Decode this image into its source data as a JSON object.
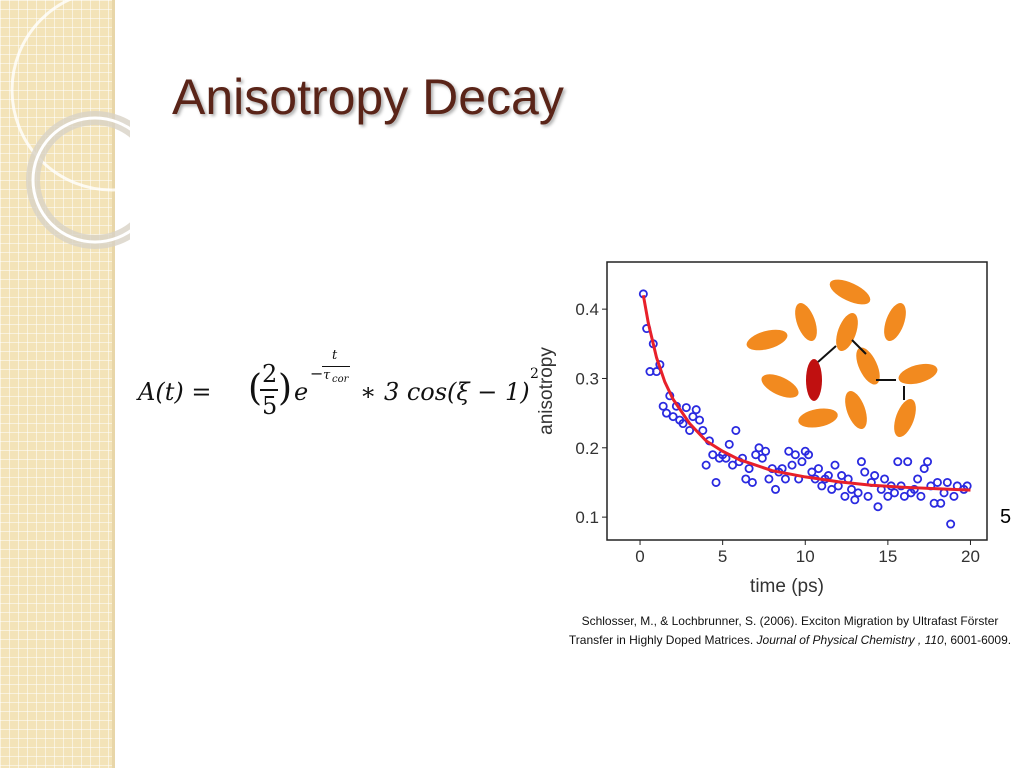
{
  "title": "Anisotropy Decay",
  "equation": {
    "lhs": "A(t) =",
    "num": "2",
    "den": "5",
    "base": "e",
    "exp_sign": "−",
    "exp_num": "t",
    "exp_den": "τ",
    "exp_sub": "cor",
    "rest": "∗ 3 cos(ξ − 1)",
    "power": "2"
  },
  "chart_data": {
    "type": "scatter",
    "x_label": "time (ps)",
    "y_label": "anisotropy",
    "xlim": [
      -2,
      21
    ],
    "ylim": [
      0.067,
      0.468
    ],
    "xticks": [
      0,
      5,
      10,
      15,
      20
    ],
    "yticks": [
      0.1,
      0.2,
      0.3,
      0.4
    ],
    "series": [
      {
        "kind": "points",
        "color": "#2a2ae0",
        "x": [
          0.2,
          0.4,
          0.6,
          0.8,
          1.0,
          1.2,
          1.4,
          1.6,
          1.8,
          2.0,
          2.2,
          2.4,
          2.6,
          2.8,
          3.0,
          3.2,
          3.4,
          3.6,
          3.8,
          4.0,
          4.2,
          4.4,
          4.6,
          4.8,
          5.0,
          5.2,
          5.4,
          5.6,
          5.8,
          6.0,
          6.2,
          6.4,
          6.6,
          6.8,
          7.0,
          7.2,
          7.4,
          7.6,
          7.8,
          8.0,
          8.2,
          8.4,
          8.6,
          8.8,
          9.0,
          9.2,
          9.4,
          9.6,
          9.8,
          10.0,
          10.2,
          10.4,
          10.6,
          10.8,
          11.0,
          11.2,
          11.4,
          11.6,
          11.8,
          12.0,
          12.2,
          12.4,
          12.6,
          12.8,
          13.0,
          13.2,
          13.4,
          13.6,
          13.8,
          14.0,
          14.2,
          14.4,
          14.6,
          14.8,
          15.0,
          15.2,
          15.4,
          15.6,
          15.8,
          16.0,
          16.2,
          16.4,
          16.6,
          16.8,
          17.0,
          17.2,
          17.4,
          17.6,
          17.8,
          18.0,
          18.2,
          18.4,
          18.6,
          18.8,
          19.0,
          19.2,
          19.6,
          19.8
        ],
        "values": [
          0.422,
          0.372,
          0.31,
          0.35,
          0.31,
          0.32,
          0.26,
          0.25,
          0.275,
          0.245,
          0.26,
          0.24,
          0.235,
          0.258,
          0.225,
          0.245,
          0.255,
          0.24,
          0.225,
          0.175,
          0.21,
          0.19,
          0.15,
          0.185,
          0.19,
          0.185,
          0.205,
          0.175,
          0.225,
          0.18,
          0.185,
          0.155,
          0.17,
          0.15,
          0.19,
          0.2,
          0.185,
          0.195,
          0.155,
          0.17,
          0.14,
          0.165,
          0.17,
          0.155,
          0.195,
          0.175,
          0.19,
          0.155,
          0.18,
          0.195,
          0.19,
          0.165,
          0.155,
          0.17,
          0.145,
          0.155,
          0.16,
          0.14,
          0.175,
          0.145,
          0.16,
          0.13,
          0.155,
          0.14,
          0.125,
          0.135,
          0.18,
          0.165,
          0.13,
          0.15,
          0.16,
          0.115,
          0.14,
          0.155,
          0.13,
          0.145,
          0.135,
          0.18,
          0.145,
          0.13,
          0.18,
          0.135,
          0.14,
          0.155,
          0.13,
          0.17,
          0.18,
          0.145,
          0.12,
          0.15,
          0.12,
          0.135,
          0.15,
          0.09,
          0.13,
          0.145,
          0.14,
          0.145
        ]
      },
      {
        "kind": "line",
        "color": "#e8202a",
        "x": [
          0.2,
          0.5,
          1,
          1.5,
          2,
          3,
          4,
          5,
          6,
          8,
          10,
          12,
          14,
          16,
          18,
          20
        ],
        "values": [
          0.42,
          0.38,
          0.33,
          0.295,
          0.27,
          0.235,
          0.21,
          0.195,
          0.183,
          0.167,
          0.158,
          0.151,
          0.146,
          0.143,
          0.141,
          0.139
        ]
      }
    ]
  },
  "citation": {
    "text": "Schlosser, M., & Lochbrunner, S. (2006). Exciton Migration by Ultrafast Förster Transfer in Highly Doped Matrices. ",
    "journal": "Journal of Physical Chemistry , 110",
    "pages": ", 6001-6009."
  },
  "page_number": "5"
}
